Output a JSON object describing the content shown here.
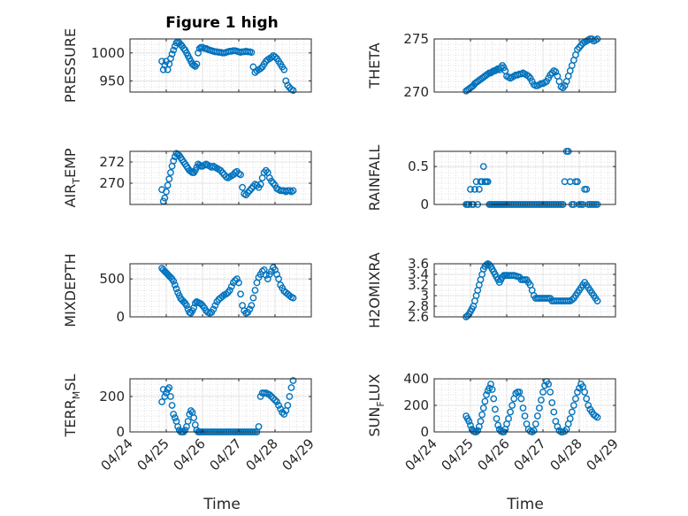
{
  "figure": {
    "title": "Figure 1 high",
    "x_label": "Time",
    "x_tick_labels": [
      "04/24",
      "04/25",
      "04/26",
      "04/27",
      "04/28",
      "04/29"
    ],
    "marker_color": "#0072BD"
  },
  "chart_data": [
    {
      "type": "scatter",
      "ylabel": "PRESSURE",
      "xlim": [
        0,
        5
      ],
      "ylim": [
        930,
        1025
      ],
      "yticks": [
        950,
        1000
      ],
      "x": [
        0.88,
        0.92,
        0.96,
        1.0,
        1.04,
        1.08,
        1.12,
        1.16,
        1.2,
        1.24,
        1.28,
        1.32,
        1.36,
        1.4,
        1.44,
        1.48,
        1.52,
        1.56,
        1.6,
        1.64,
        1.68,
        1.72,
        1.76,
        1.8,
        1.84,
        1.88,
        1.92,
        1.96,
        2.0,
        2.05,
        2.1,
        2.15,
        2.2,
        2.25,
        2.3,
        2.35,
        2.4,
        2.45,
        2.5,
        2.55,
        2.6,
        2.65,
        2.7,
        2.75,
        2.8,
        2.85,
        2.9,
        2.95,
        3.0,
        3.05,
        3.1,
        3.15,
        3.2,
        3.25,
        3.3,
        3.35,
        3.4,
        3.45,
        3.5,
        3.55,
        3.6,
        3.65,
        3.7,
        3.75,
        3.8,
        3.85,
        3.9,
        3.95,
        4.0,
        4.05,
        4.1,
        4.15,
        4.2,
        4.25,
        4.3,
        4.35,
        4.4,
        4.45,
        4.5
      ],
      "values": [
        985,
        970,
        978,
        985,
        970,
        980,
        990,
        998,
        1005,
        1012,
        1018,
        1020,
        1018,
        1015,
        1012,
        1008,
        1005,
        1000,
        995,
        990,
        985,
        980,
        978,
        976,
        980,
        1000,
        1008,
        1010,
        1010,
        1008,
        1008,
        1006,
        1005,
        1004,
        1003,
        1002,
        1002,
        1001,
        1001,
        1000,
        1000,
        1001,
        1002,
        1003,
        1003,
        1004,
        1004,
        1003,
        1002,
        1001,
        1002,
        1002,
        1003,
        1002,
        1002,
        1001,
        975,
        965,
        968,
        970,
        972,
        975,
        980,
        985,
        988,
        990,
        992,
        995,
        993,
        990,
        985,
        980,
        975,
        970,
        950,
        942,
        938,
        935,
        933
      ]
    },
    {
      "type": "scatter",
      "ylabel": "THETA",
      "xlim": [
        0,
        5
      ],
      "ylim": [
        270,
        275
      ],
      "yticks": [
        270,
        275
      ],
      "x": [
        0.88,
        0.92,
        0.96,
        1.0,
        1.04,
        1.08,
        1.12,
        1.16,
        1.2,
        1.24,
        1.28,
        1.32,
        1.36,
        1.4,
        1.44,
        1.48,
        1.52,
        1.56,
        1.6,
        1.64,
        1.68,
        1.72,
        1.76,
        1.8,
        1.84,
        1.88,
        1.92,
        1.96,
        2.0,
        2.05,
        2.1,
        2.15,
        2.2,
        2.25,
        2.3,
        2.35,
        2.4,
        2.45,
        2.5,
        2.55,
        2.6,
        2.65,
        2.7,
        2.75,
        2.8,
        2.85,
        2.9,
        2.95,
        3.0,
        3.05,
        3.1,
        3.15,
        3.2,
        3.25,
        3.3,
        3.35,
        3.4,
        3.45,
        3.5,
        3.55,
        3.6,
        3.65,
        3.7,
        3.75,
        3.8,
        3.85,
        3.9,
        3.95,
        4.0,
        4.05,
        4.1,
        4.15,
        4.2,
        4.25,
        4.3,
        4.35,
        4.4,
        4.45,
        4.5
      ],
      "values": [
        270.1,
        270.2,
        270.3,
        270.4,
        270.5,
        270.6,
        270.8,
        270.9,
        271.0,
        271.1,
        271.2,
        271.3,
        271.4,
        271.5,
        271.6,
        271.7,
        271.8,
        271.8,
        271.9,
        272.0,
        272.0,
        272.1,
        272.2,
        272.1,
        272.3,
        272.5,
        272.3,
        272.0,
        271.5,
        271.4,
        271.3,
        271.4,
        271.5,
        271.6,
        271.6,
        271.7,
        271.7,
        271.8,
        271.7,
        271.6,
        271.5,
        271.3,
        271.0,
        270.7,
        270.6,
        270.6,
        270.7,
        270.8,
        270.8,
        270.9,
        271.0,
        271.3,
        271.6,
        271.8,
        272.0,
        271.9,
        271.5,
        271.0,
        270.5,
        270.4,
        270.6,
        271.0,
        271.5,
        272.0,
        272.5,
        273.0,
        273.5,
        274.0,
        274.2,
        274.4,
        274.6,
        274.7,
        274.8,
        274.9,
        275.0,
        275.0,
        274.8,
        274.9,
        275.0
      ]
    },
    {
      "type": "scatter",
      "ylabel": "AIR_TEMP",
      "xlim": [
        0,
        5
      ],
      "ylim": [
        268,
        273
      ],
      "yticks": [
        270,
        272
      ],
      "x": [
        0.88,
        0.92,
        0.96,
        1.0,
        1.04,
        1.08,
        1.12,
        1.16,
        1.2,
        1.24,
        1.28,
        1.32,
        1.36,
        1.4,
        1.44,
        1.48,
        1.52,
        1.56,
        1.6,
        1.64,
        1.68,
        1.72,
        1.76,
        1.8,
        1.84,
        1.88,
        1.92,
        1.96,
        2.0,
        2.05,
        2.1,
        2.15,
        2.2,
        2.25,
        2.3,
        2.35,
        2.4,
        2.45,
        2.5,
        2.55,
        2.6,
        2.65,
        2.7,
        2.75,
        2.8,
        2.85,
        2.9,
        2.95,
        3.0,
        3.05,
        3.1,
        3.15,
        3.2,
        3.25,
        3.3,
        3.35,
        3.4,
        3.45,
        3.5,
        3.55,
        3.6,
        3.65,
        3.7,
        3.75,
        3.8,
        3.85,
        3.9,
        3.95,
        4.0,
        4.05,
        4.1,
        4.15,
        4.2,
        4.25,
        4.3,
        4.35,
        4.4,
        4.45,
        4.5
      ],
      "values": [
        269.4,
        268.3,
        268.6,
        269.2,
        269.8,
        270.4,
        271.0,
        271.6,
        272.1,
        272.5,
        272.8,
        272.7,
        272.6,
        272.4,
        272.2,
        272.0,
        271.8,
        271.6,
        271.4,
        271.2,
        271.1,
        271.0,
        271.0,
        271.2,
        271.5,
        271.8,
        271.7,
        271.6,
        271.6,
        271.7,
        271.8,
        271.7,
        271.6,
        271.5,
        271.6,
        271.5,
        271.4,
        271.3,
        271.2,
        271.0,
        270.8,
        270.6,
        270.5,
        270.6,
        270.7,
        270.8,
        271.0,
        271.1,
        270.9,
        270.8,
        269.6,
        269.0,
        268.9,
        269.1,
        269.3,
        269.5,
        269.7,
        269.9,
        269.8,
        269.6,
        269.9,
        270.5,
        271.0,
        271.2,
        271.0,
        270.5,
        270.2,
        270.0,
        269.8,
        269.5,
        269.4,
        269.3,
        269.3,
        269.3,
        269.2,
        269.3,
        269.3,
        269.2,
        269.3
      ]
    },
    {
      "type": "scatter",
      "ylabel": "RAINFALL",
      "xlim": [
        0,
        5
      ],
      "ylim": [
        0,
        0.7
      ],
      "yticks": [
        0,
        0.5
      ],
      "x": [
        0.88,
        0.92,
        0.96,
        1.0,
        1.04,
        1.08,
        1.12,
        1.16,
        1.2,
        1.24,
        1.28,
        1.32,
        1.36,
        1.4,
        1.44,
        1.48,
        1.52,
        1.56,
        1.6,
        1.64,
        1.68,
        1.72,
        1.76,
        1.8,
        1.84,
        1.88,
        1.92,
        1.96,
        2.0,
        2.05,
        2.1,
        2.15,
        2.2,
        2.25,
        2.3,
        2.35,
        2.4,
        2.45,
        2.5,
        2.55,
        2.6,
        2.65,
        2.7,
        2.75,
        2.8,
        2.85,
        2.9,
        2.95,
        3.0,
        3.05,
        3.1,
        3.15,
        3.2,
        3.25,
        3.3,
        3.35,
        3.4,
        3.45,
        3.5,
        3.55,
        3.6,
        3.65,
        3.7,
        3.75,
        3.8,
        3.85,
        3.9,
        3.95,
        4.0,
        4.05,
        4.1,
        4.15,
        4.2,
        4.25,
        4.3,
        4.35,
        4.4,
        4.45,
        4.5
      ],
      "values": [
        0,
        0,
        0,
        0.2,
        0,
        0,
        0.2,
        0.3,
        0,
        0.2,
        0.3,
        0.3,
        0.5,
        0.3,
        0.3,
        0.3,
        0,
        0,
        0,
        0,
        0,
        0,
        0,
        0,
        0,
        0,
        0,
        0,
        0,
        0,
        0,
        0,
        0,
        0,
        0,
        0,
        0,
        0,
        0,
        0,
        0,
        0,
        0,
        0,
        0,
        0,
        0,
        0,
        0,
        0,
        0,
        0,
        0,
        0,
        0,
        0,
        0,
        0,
        0,
        0,
        0.3,
        0.7,
        0.7,
        0.3,
        0,
        0,
        0.3,
        0.3,
        0,
        0,
        0,
        0.2,
        0.2,
        0,
        0,
        0,
        0,
        0,
        0
      ]
    },
    {
      "type": "scatter",
      "ylabel": "MIXDEPTH",
      "xlim": [
        0,
        5
      ],
      "ylim": [
        0,
        700
      ],
      "yticks": [
        0,
        500
      ],
      "x": [
        0.88,
        0.92,
        0.96,
        1.0,
        1.04,
        1.08,
        1.12,
        1.16,
        1.2,
        1.24,
        1.28,
        1.32,
        1.36,
        1.4,
        1.44,
        1.48,
        1.52,
        1.56,
        1.6,
        1.64,
        1.68,
        1.72,
        1.76,
        1.8,
        1.84,
        1.88,
        1.92,
        1.96,
        2.0,
        2.05,
        2.1,
        2.15,
        2.2,
        2.25,
        2.3,
        2.35,
        2.4,
        2.45,
        2.5,
        2.55,
        2.6,
        2.65,
        2.7,
        2.75,
        2.8,
        2.85,
        2.9,
        2.95,
        3.0,
        3.05,
        3.1,
        3.15,
        3.2,
        3.25,
        3.3,
        3.35,
        3.4,
        3.45,
        3.5,
        3.55,
        3.6,
        3.65,
        3.7,
        3.75,
        3.8,
        3.85,
        3.9,
        3.95,
        4.0,
        4.05,
        4.1,
        4.15,
        4.2,
        4.25,
        4.3,
        4.35,
        4.4,
        4.45,
        4.5
      ],
      "values": [
        640,
        620,
        600,
        580,
        560,
        540,
        520,
        500,
        470,
        420,
        370,
        320,
        280,
        240,
        220,
        200,
        180,
        150,
        100,
        60,
        50,
        80,
        120,
        180,
        200,
        190,
        180,
        170,
        150,
        120,
        80,
        60,
        50,
        60,
        100,
        150,
        200,
        230,
        250,
        270,
        290,
        300,
        320,
        350,
        400,
        450,
        480,
        500,
        450,
        300,
        150,
        80,
        50,
        60,
        100,
        150,
        250,
        350,
        450,
        520,
        560,
        600,
        620,
        550,
        500,
        560,
        600,
        650,
        620,
        560,
        500,
        420,
        380,
        340,
        320,
        300,
        280,
        260,
        250
      ]
    },
    {
      "type": "scatter",
      "ylabel": "H2OMIXRA",
      "xlim": [
        0,
        5
      ],
      "ylim": [
        2.6,
        3.6
      ],
      "yticks": [
        2.6,
        2.8,
        3,
        3.2,
        3.4,
        3.6
      ],
      "x": [
        0.88,
        0.92,
        0.96,
        1.0,
        1.04,
        1.08,
        1.12,
        1.16,
        1.2,
        1.24,
        1.28,
        1.32,
        1.36,
        1.4,
        1.44,
        1.48,
        1.52,
        1.56,
        1.6,
        1.64,
        1.68,
        1.72,
        1.76,
        1.8,
        1.84,
        1.88,
        1.92,
        1.96,
        2.0,
        2.05,
        2.1,
        2.15,
        2.2,
        2.25,
        2.3,
        2.35,
        2.4,
        2.45,
        2.5,
        2.55,
        2.6,
        2.65,
        2.7,
        2.75,
        2.8,
        2.85,
        2.9,
        2.95,
        3.0,
        3.05,
        3.1,
        3.15,
        3.2,
        3.25,
        3.3,
        3.35,
        3.4,
        3.45,
        3.5,
        3.55,
        3.6,
        3.65,
        3.7,
        3.75,
        3.8,
        3.85,
        3.9,
        3.95,
        4.0,
        4.05,
        4.1,
        4.15,
        4.2,
        4.25,
        4.3,
        4.35,
        4.4,
        4.45,
        4.5
      ],
      "values": [
        2.6,
        2.62,
        2.65,
        2.7,
        2.75,
        2.8,
        2.9,
        3.0,
        3.1,
        3.2,
        3.3,
        3.4,
        3.5,
        3.55,
        3.58,
        3.6,
        3.58,
        3.55,
        3.5,
        3.45,
        3.4,
        3.35,
        3.3,
        3.25,
        3.3,
        3.35,
        3.38,
        3.38,
        3.38,
        3.38,
        3.38,
        3.38,
        3.38,
        3.37,
        3.36,
        3.35,
        3.3,
        3.3,
        3.3,
        3.3,
        3.25,
        3.2,
        3.1,
        3.0,
        2.95,
        2.95,
        2.95,
        2.95,
        2.95,
        2.95,
        2.95,
        2.95,
        2.95,
        2.9,
        2.9,
        2.9,
        2.9,
        2.9,
        2.9,
        2.9,
        2.9,
        2.9,
        2.9,
        2.9,
        2.92,
        2.95,
        3.0,
        3.05,
        3.1,
        3.15,
        3.2,
        3.25,
        3.2,
        3.15,
        3.1,
        3.05,
        3.0,
        2.95,
        2.9
      ]
    },
    {
      "type": "scatter",
      "ylabel": "TERR_MSL",
      "xlim": [
        0,
        5
      ],
      "ylim": [
        0,
        300
      ],
      "yticks": [
        0,
        200
      ],
      "x": [
        0.88,
        0.92,
        0.96,
        1.0,
        1.04,
        1.08,
        1.12,
        1.16,
        1.2,
        1.24,
        1.28,
        1.32,
        1.36,
        1.4,
        1.44,
        1.48,
        1.52,
        1.56,
        1.6,
        1.64,
        1.68,
        1.72,
        1.76,
        1.8,
        1.84,
        1.88,
        1.92,
        1.96,
        2.0,
        2.05,
        2.1,
        2.15,
        2.2,
        2.25,
        2.3,
        2.35,
        2.4,
        2.45,
        2.5,
        2.55,
        2.6,
        2.65,
        2.7,
        2.75,
        2.8,
        2.85,
        2.9,
        2.95,
        3.0,
        3.05,
        3.1,
        3.15,
        3.2,
        3.25,
        3.3,
        3.35,
        3.4,
        3.45,
        3.5,
        3.55,
        3.6,
        3.65,
        3.7,
        3.75,
        3.8,
        3.85,
        3.9,
        3.95,
        4.0,
        4.05,
        4.1,
        4.15,
        4.2,
        4.25,
        4.3,
        4.35,
        4.4,
        4.45,
        4.5
      ],
      "values": [
        170,
        240,
        200,
        220,
        240,
        250,
        200,
        150,
        100,
        80,
        60,
        30,
        10,
        0,
        0,
        0,
        10,
        30,
        60,
        100,
        120,
        110,
        80,
        40,
        10,
        0,
        0,
        0,
        0,
        0,
        0,
        0,
        0,
        0,
        0,
        0,
        0,
        0,
        0,
        0,
        0,
        0,
        0,
        0,
        0,
        0,
        0,
        0,
        0,
        0,
        0,
        0,
        0,
        0,
        0,
        0,
        0,
        0,
        0,
        30,
        200,
        220,
        220,
        220,
        215,
        210,
        200,
        190,
        180,
        170,
        150,
        130,
        110,
        100,
        120,
        150,
        200,
        250,
        290
      ]
    },
    {
      "type": "scatter",
      "ylabel": "SUN_FLUX",
      "xlim": [
        0,
        5
      ],
      "ylim": [
        0,
        400
      ],
      "yticks": [
        0,
        200,
        400
      ],
      "x": [
        0.88,
        0.92,
        0.96,
        1.0,
        1.04,
        1.08,
        1.12,
        1.16,
        1.2,
        1.24,
        1.28,
        1.32,
        1.36,
        1.4,
        1.44,
        1.48,
        1.52,
        1.56,
        1.6,
        1.64,
        1.68,
        1.72,
        1.76,
        1.8,
        1.84,
        1.88,
        1.92,
        1.96,
        2.0,
        2.05,
        2.1,
        2.15,
        2.2,
        2.25,
        2.3,
        2.35,
        2.4,
        2.45,
        2.5,
        2.55,
        2.6,
        2.65,
        2.7,
        2.75,
        2.8,
        2.85,
        2.9,
        2.95,
        3.0,
        3.05,
        3.1,
        3.15,
        3.2,
        3.25,
        3.3,
        3.35,
        3.4,
        3.45,
        3.5,
        3.55,
        3.6,
        3.65,
        3.7,
        3.75,
        3.8,
        3.85,
        3.9,
        3.95,
        4.0,
        4.05,
        4.1,
        4.15,
        4.2,
        4.25,
        4.3,
        4.35,
        4.4,
        4.45,
        4.5
      ],
      "values": [
        120,
        100,
        80,
        50,
        20,
        5,
        0,
        0,
        10,
        40,
        80,
        130,
        180,
        230,
        280,
        310,
        330,
        360,
        320,
        250,
        170,
        100,
        50,
        20,
        5,
        0,
        0,
        20,
        60,
        100,
        150,
        200,
        250,
        290,
        300,
        300,
        250,
        180,
        120,
        60,
        20,
        5,
        0,
        10,
        60,
        120,
        180,
        240,
        300,
        350,
        380,
        360,
        300,
        220,
        150,
        80,
        40,
        10,
        0,
        0,
        5,
        20,
        60,
        100,
        150,
        200,
        250,
        300,
        330,
        360,
        340,
        300,
        250,
        200,
        170,
        150,
        130,
        120,
        110
      ]
    }
  ]
}
